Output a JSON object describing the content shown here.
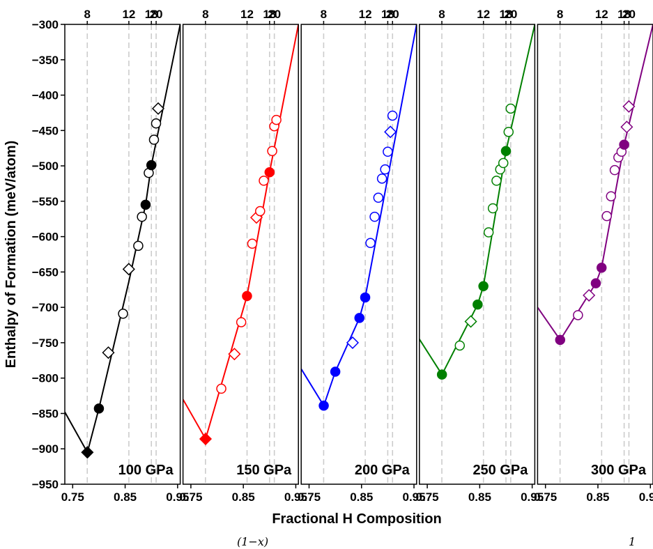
{
  "chart_data": {
    "type": "scatter",
    "ylabel": "Enthalpy of Formation (meV/atom)",
    "xlabel": "Fractional H Composition",
    "ylim": [
      -950,
      -300
    ],
    "yticks": [
      -300,
      -350,
      -400,
      -450,
      -500,
      -550,
      -600,
      -650,
      -700,
      -750,
      -800,
      -850,
      -900,
      -950
    ],
    "xlim": [
      0.735,
      0.955
    ],
    "xticks": [
      0.75,
      0.85,
      0.95
    ],
    "xtick_labels": [
      "0.75",
      "0.85",
      "0.95"
    ],
    "top_axis_ticks": [
      {
        "x": 0.7778,
        "label": "8"
      },
      {
        "x": 0.8571,
        "label": "12"
      },
      {
        "x": 0.9,
        "label": "18"
      },
      {
        "x": 0.9091,
        "label": "20"
      }
    ],
    "vertical_guides": [
      0.7778,
      0.8571,
      0.9,
      0.9091
    ],
    "grid": false,
    "footer_fragments": [
      "(1−x)",
      "1"
    ],
    "panels": [
      {
        "label": "100 GPa",
        "color": "#000000",
        "hull": [
          [
            0.735,
            -848
          ],
          [
            0.778,
            -905
          ],
          [
            0.8,
            -843
          ],
          [
            0.857,
            -664
          ],
          [
            0.889,
            -555
          ],
          [
            0.9,
            -499
          ],
          [
            0.955,
            -300
          ]
        ],
        "points": [
          {
            "x": 0.778,
            "y": -905,
            "marker": "diamond",
            "filled": true
          },
          {
            "x": 0.8,
            "y": -843,
            "marker": "circle",
            "filled": true
          },
          {
            "x": 0.818,
            "y": -764,
            "marker": "diamond",
            "filled": false
          },
          {
            "x": 0.846,
            "y": -709,
            "marker": "circle",
            "filled": false
          },
          {
            "x": 0.857,
            "y": -646,
            "marker": "diamond",
            "filled": false
          },
          {
            "x": 0.875,
            "y": -613,
            "marker": "circle",
            "filled": false
          },
          {
            "x": 0.882,
            "y": -572,
            "marker": "circle",
            "filled": false
          },
          {
            "x": 0.889,
            "y": -555,
            "marker": "circle",
            "filled": true
          },
          {
            "x": 0.895,
            "y": -510,
            "marker": "circle",
            "filled": false
          },
          {
            "x": 0.9,
            "y": -499,
            "marker": "circle",
            "filled": true
          },
          {
            "x": 0.905,
            "y": -463,
            "marker": "circle",
            "filled": false
          },
          {
            "x": 0.909,
            "y": -440,
            "marker": "circle",
            "filled": false
          },
          {
            "x": 0.913,
            "y": -419,
            "marker": "diamond",
            "filled": false
          }
        ]
      },
      {
        "label": "150 GPa",
        "color": "#ff0000",
        "hull": [
          [
            0.735,
            -830
          ],
          [
            0.778,
            -886
          ],
          [
            0.857,
            -684
          ],
          [
            0.9,
            -509
          ],
          [
            0.955,
            -300
          ]
        ],
        "points": [
          {
            "x": 0.778,
            "y": -886,
            "marker": "diamond",
            "filled": true
          },
          {
            "x": 0.808,
            "y": -815,
            "marker": "circle",
            "filled": false
          },
          {
            "x": 0.833,
            "y": -766,
            "marker": "diamond",
            "filled": false
          },
          {
            "x": 0.846,
            "y": -721,
            "marker": "circle",
            "filled": false
          },
          {
            "x": 0.857,
            "y": -684,
            "marker": "circle",
            "filled": true
          },
          {
            "x": 0.867,
            "y": -610,
            "marker": "circle",
            "filled": false
          },
          {
            "x": 0.875,
            "y": -573,
            "marker": "diamond",
            "filled": false
          },
          {
            "x": 0.882,
            "y": -564,
            "marker": "circle",
            "filled": false
          },
          {
            "x": 0.889,
            "y": -521,
            "marker": "circle",
            "filled": false
          },
          {
            "x": 0.9,
            "y": -509,
            "marker": "circle",
            "filled": true
          },
          {
            "x": 0.905,
            "y": -479,
            "marker": "circle",
            "filled": false
          },
          {
            "x": 0.909,
            "y": -444,
            "marker": "circle",
            "filled": false
          },
          {
            "x": 0.913,
            "y": -435,
            "marker": "circle",
            "filled": false
          }
        ]
      },
      {
        "label": "200 GPa",
        "color": "#0000ff",
        "hull": [
          [
            0.735,
            -787
          ],
          [
            0.778,
            -839
          ],
          [
            0.8,
            -791
          ],
          [
            0.846,
            -715
          ],
          [
            0.857,
            -686
          ],
          [
            0.955,
            -300
          ]
        ],
        "points": [
          {
            "x": 0.778,
            "y": -839,
            "marker": "circle",
            "filled": true
          },
          {
            "x": 0.8,
            "y": -791,
            "marker": "circle",
            "filled": true
          },
          {
            "x": 0.833,
            "y": -750,
            "marker": "diamond",
            "filled": false
          },
          {
            "x": 0.846,
            "y": -715,
            "marker": "circle",
            "filled": true
          },
          {
            "x": 0.857,
            "y": -686,
            "marker": "circle",
            "filled": true
          },
          {
            "x": 0.867,
            "y": -609,
            "marker": "circle",
            "filled": false
          },
          {
            "x": 0.875,
            "y": -572,
            "marker": "circle",
            "filled": false
          },
          {
            "x": 0.882,
            "y": -545,
            "marker": "circle",
            "filled": false
          },
          {
            "x": 0.889,
            "y": -518,
            "marker": "circle",
            "filled": false
          },
          {
            "x": 0.895,
            "y": -505,
            "marker": "circle",
            "filled": false
          },
          {
            "x": 0.9,
            "y": -480,
            "marker": "circle",
            "filled": false
          },
          {
            "x": 0.905,
            "y": -452,
            "marker": "diamond",
            "filled": false
          },
          {
            "x": 0.909,
            "y": -429,
            "marker": "circle",
            "filled": false
          }
        ]
      },
      {
        "label": "250 GPa",
        "color": "#008000",
        "hull": [
          [
            0.735,
            -745
          ],
          [
            0.778,
            -795
          ],
          [
            0.846,
            -696
          ],
          [
            0.857,
            -670
          ],
          [
            0.9,
            -479
          ],
          [
            0.955,
            -300
          ]
        ],
        "points": [
          {
            "x": 0.778,
            "y": -795,
            "marker": "circle",
            "filled": true
          },
          {
            "x": 0.812,
            "y": -754,
            "marker": "circle",
            "filled": false
          },
          {
            "x": 0.833,
            "y": -720,
            "marker": "diamond",
            "filled": false
          },
          {
            "x": 0.846,
            "y": -696,
            "marker": "circle",
            "filled": true
          },
          {
            "x": 0.857,
            "y": -670,
            "marker": "circle",
            "filled": true
          },
          {
            "x": 0.867,
            "y": -594,
            "marker": "circle",
            "filled": false
          },
          {
            "x": 0.875,
            "y": -560,
            "marker": "circle",
            "filled": false
          },
          {
            "x": 0.882,
            "y": -521,
            "marker": "circle",
            "filled": false
          },
          {
            "x": 0.889,
            "y": -505,
            "marker": "circle",
            "filled": false
          },
          {
            "x": 0.895,
            "y": -496,
            "marker": "circle",
            "filled": false
          },
          {
            "x": 0.9,
            "y": -479,
            "marker": "circle",
            "filled": true
          },
          {
            "x": 0.905,
            "y": -452,
            "marker": "circle",
            "filled": false
          },
          {
            "x": 0.909,
            "y": -419,
            "marker": "circle",
            "filled": false
          }
        ]
      },
      {
        "label": "300 GPa",
        "color": "#800080",
        "hull": [
          [
            0.735,
            -700
          ],
          [
            0.778,
            -746
          ],
          [
            0.846,
            -666
          ],
          [
            0.857,
            -644
          ],
          [
            0.9,
            -470
          ],
          [
            0.955,
            -300
          ]
        ],
        "points": [
          {
            "x": 0.778,
            "y": -746,
            "marker": "circle",
            "filled": true
          },
          {
            "x": 0.812,
            "y": -711,
            "marker": "circle",
            "filled": false
          },
          {
            "x": 0.833,
            "y": -683,
            "marker": "diamond",
            "filled": false
          },
          {
            "x": 0.846,
            "y": -666,
            "marker": "circle",
            "filled": true
          },
          {
            "x": 0.857,
            "y": -644,
            "marker": "circle",
            "filled": true
          },
          {
            "x": 0.867,
            "y": -571,
            "marker": "circle",
            "filled": false
          },
          {
            "x": 0.875,
            "y": -543,
            "marker": "circle",
            "filled": false
          },
          {
            "x": 0.882,
            "y": -506,
            "marker": "circle",
            "filled": false
          },
          {
            "x": 0.889,
            "y": -488,
            "marker": "circle",
            "filled": false
          },
          {
            "x": 0.895,
            "y": -480,
            "marker": "circle",
            "filled": false
          },
          {
            "x": 0.9,
            "y": -470,
            "marker": "circle",
            "filled": true
          },
          {
            "x": 0.905,
            "y": -445,
            "marker": "diamond",
            "filled": false
          },
          {
            "x": 0.909,
            "y": -416,
            "marker": "diamond",
            "filled": false
          }
        ]
      }
    ]
  }
}
